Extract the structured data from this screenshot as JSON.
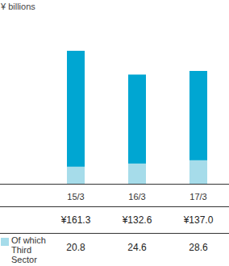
{
  "chart_data": {
    "type": "bar",
    "ylabel": "¥ billions",
    "categories": [
      "15/3",
      "16/3",
      "17/3"
    ],
    "series": [
      {
        "color": "#00a6d2",
        "values": [
          161.3,
          132.6,
          137.0
        ],
        "value_labels": [
          "¥161.3",
          "¥132.6",
          "¥137.0"
        ]
      },
      {
        "name": "Of which Third Sector",
        "color": "#a6dcea",
        "values": [
          20.8,
          24.6,
          28.6
        ]
      }
    ],
    "ylim": [
      0,
      180
    ],
    "yticks": [
      0,
      180
    ],
    "grid": false,
    "tick_labels": "x",
    "data_labels": true
  }
}
